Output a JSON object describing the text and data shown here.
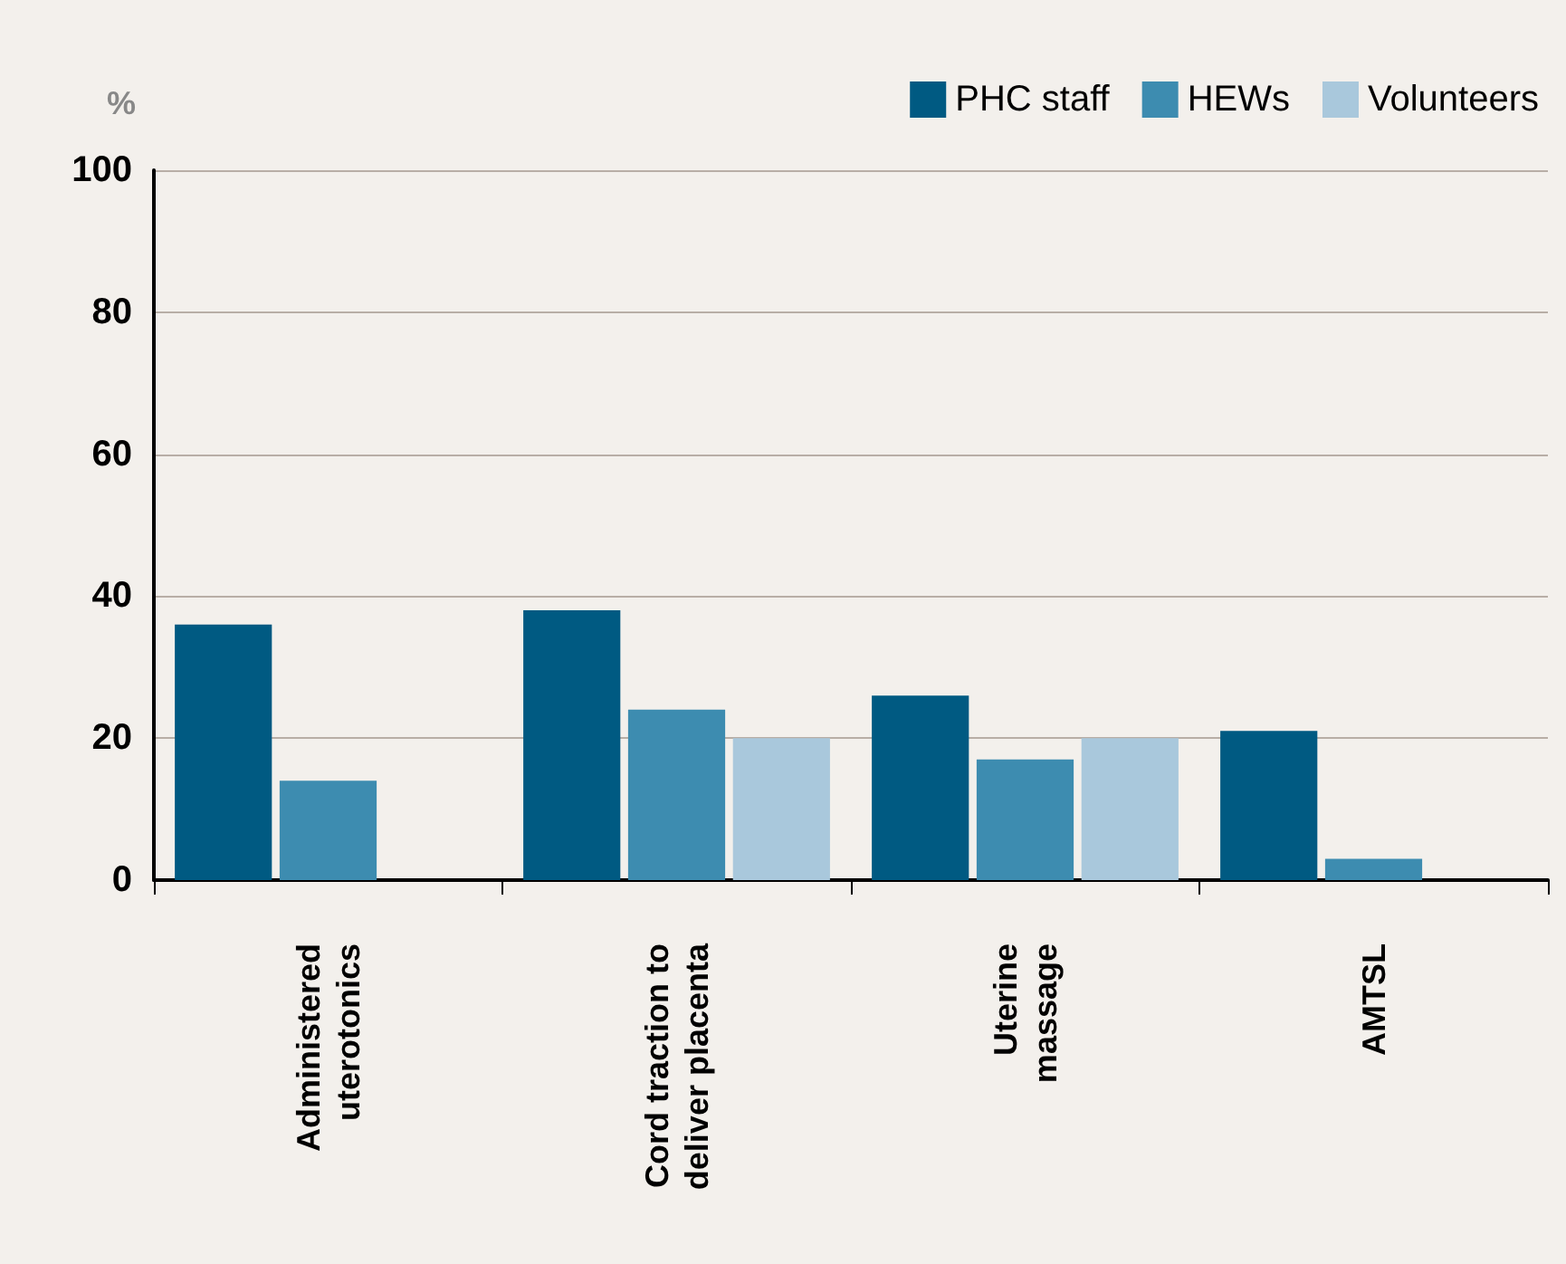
{
  "chart_data": {
    "type": "bar",
    "ylabel": "%",
    "categories": [
      "Administered uterotonics",
      "Cord traction to deliver placenta",
      "Uterine massage",
      "AMTSL"
    ],
    "series": [
      {
        "name": "PHC staff",
        "color": "#005a82",
        "values": [
          36,
          38,
          26,
          21
        ]
      },
      {
        "name": "HEWs",
        "color": "#3d8cb0",
        "values": [
          14,
          24,
          17,
          3
        ]
      },
      {
        "name": "Volunteers",
        "color": "#a9c8dc",
        "values": [
          0,
          20,
          20,
          0
        ]
      }
    ],
    "ylim": [
      0,
      100
    ],
    "yticks": [
      0,
      20,
      40,
      60,
      80,
      100
    ],
    "grid": "y",
    "legend": "top right"
  }
}
